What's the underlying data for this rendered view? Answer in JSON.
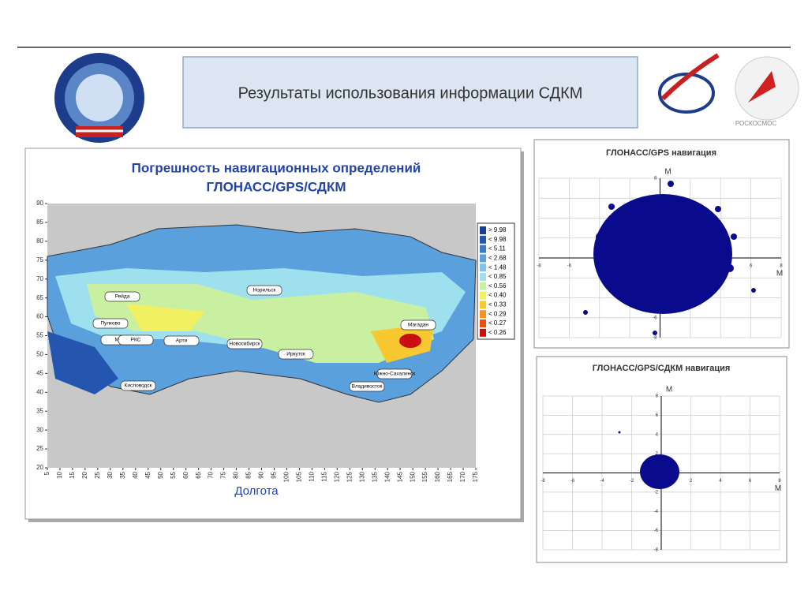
{
  "header": {
    "title": "Результаты использования информации СДКМ",
    "agency": "РОСКОСМОС"
  },
  "map": {
    "title_lines": [
      "Погрешность навигационных определений",
      "ГЛОНАСС/GPS/СДКМ"
    ],
    "x_label": "Долгота",
    "yticks": [
      90,
      85,
      80,
      75,
      70,
      65,
      60,
      55,
      50,
      45,
      40,
      35,
      30,
      25,
      20
    ],
    "xticks": [
      5,
      10,
      15,
      20,
      25,
      30,
      35,
      40,
      45,
      50,
      55,
      60,
      65,
      70,
      75,
      80,
      85,
      90,
      95,
      100,
      105,
      110,
      115,
      120,
      125,
      130,
      135,
      140,
      145,
      150,
      155,
      160,
      165,
      170,
      175
    ],
    "legend": [
      {
        "label": "> 9.98",
        "color": "#1c3f94"
      },
      {
        "label": "< 9.98",
        "color": "#2456b0"
      },
      {
        "label": "< 5.11",
        "color": "#3a78c8"
      },
      {
        "label": "< 2.68",
        "color": "#5aa0dc"
      },
      {
        "label": "< 1.48",
        "color": "#7fc4ea"
      },
      {
        "label": "< 0.85",
        "color": "#9fe0ee"
      },
      {
        "label": "< 0.56",
        "color": "#c8f0a0"
      },
      {
        "label": "< 0.40",
        "color": "#f0f060"
      },
      {
        "label": "< 0.33",
        "color": "#f8c830"
      },
      {
        "label": "< 0.29",
        "color": "#f89020"
      },
      {
        "label": "< 0.27",
        "color": "#e85010"
      },
      {
        "label": "< 0.26",
        "color": "#c81010"
      }
    ],
    "cities": [
      "Рейда",
      "Пулково",
      "Ме",
      "РКС",
      "Арти",
      "Новосибирск",
      "Норильск",
      "Иркутск",
      "Магадан",
      "Южно-Сахалинск",
      "Владивосток",
      "Кисловодск"
    ]
  },
  "scatter_top": {
    "title": "ГЛОНАСС/GPS навигация",
    "x_label": "М",
    "y_label": "М",
    "xticks": [
      -8,
      -6,
      -4,
      -2,
      0,
      2,
      4,
      6,
      8
    ],
    "yticks": [
      -8,
      -6,
      -4,
      -2,
      0,
      2,
      4,
      6,
      8
    ]
  },
  "scatter_bottom": {
    "title": "ГЛОНАСС/GPS/СДКМ навигация",
    "x_label": "М",
    "y_label": "М",
    "xticks": [
      -8,
      -6,
      -4,
      -2,
      0,
      2,
      4,
      6,
      8
    ],
    "yticks": [
      -8,
      -6,
      -4,
      -2,
      0,
      2,
      4,
      6,
      8
    ]
  }
}
